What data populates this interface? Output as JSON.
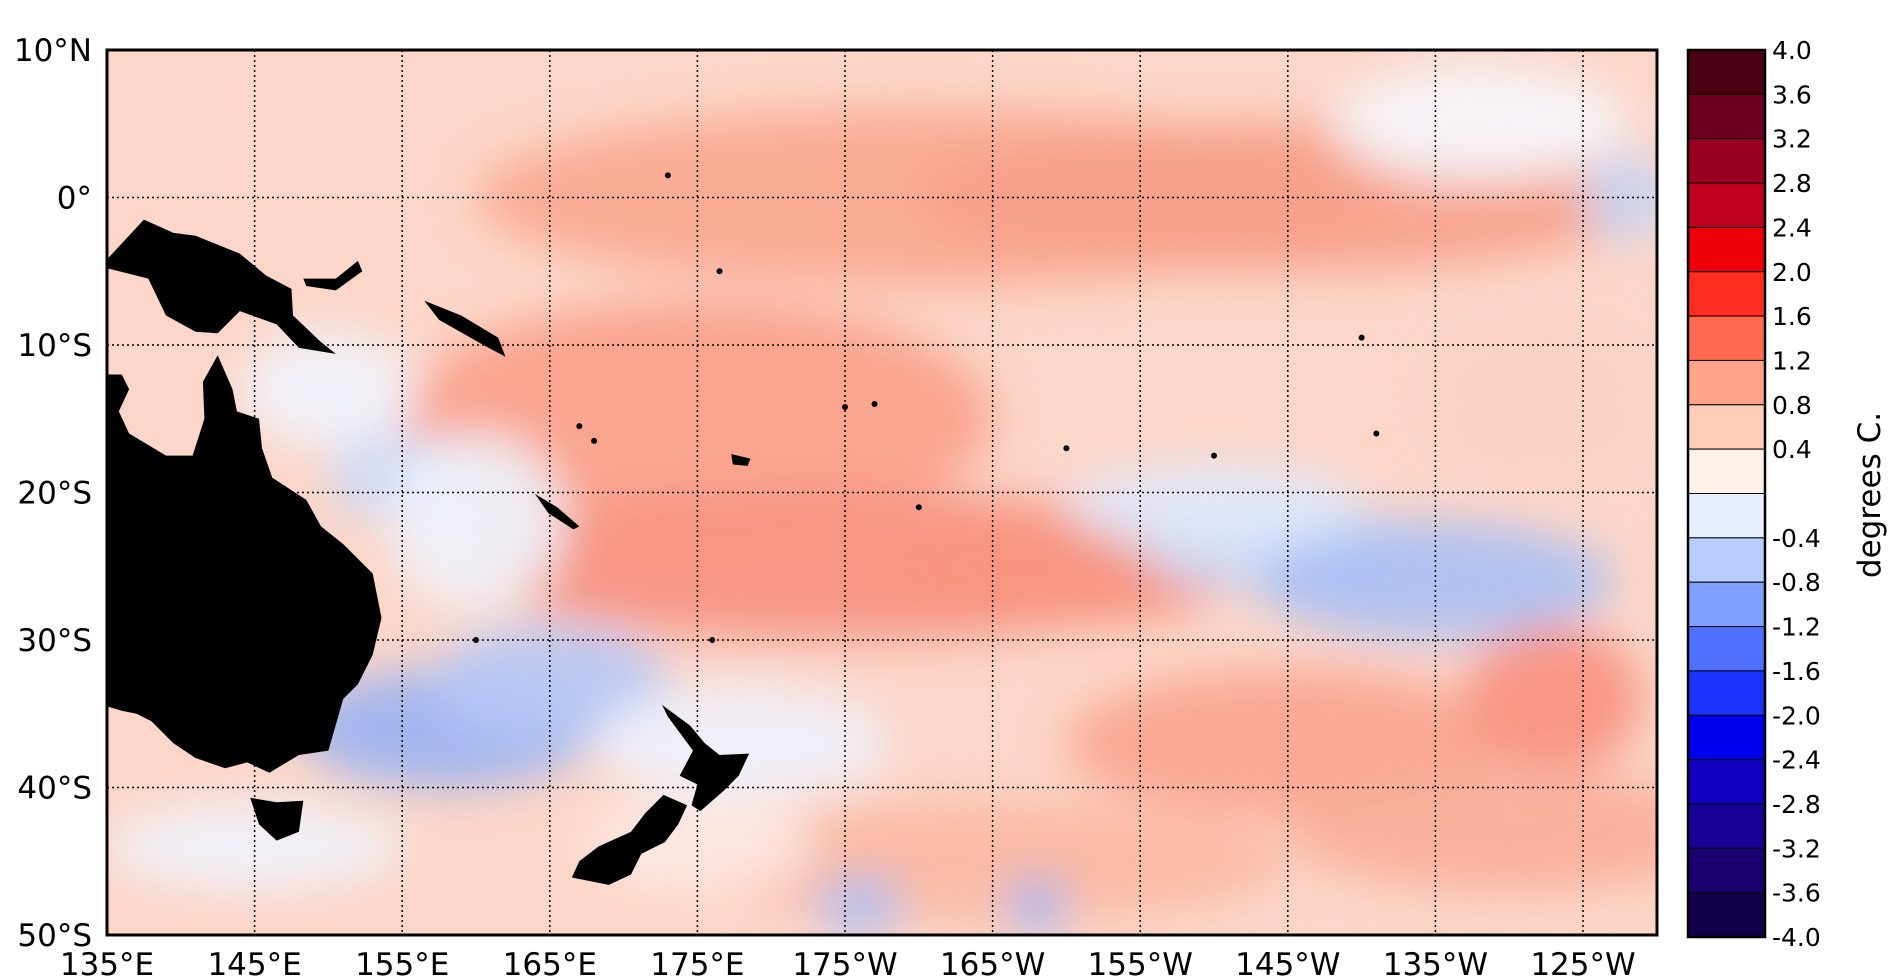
{
  "map": {
    "lat_labels": [
      "10°N",
      "0°",
      "10°S",
      "20°S",
      "30°S",
      "40°S",
      "50°S"
    ],
    "lon_labels": [
      "135°E",
      "145°E",
      "155°E",
      "165°E",
      "175°E",
      "175°W",
      "165°W",
      "155°W",
      "145°W",
      "135°W",
      "125°W"
    ],
    "lon_range": [
      135,
      240
    ],
    "lat_range": [
      -50,
      10
    ]
  },
  "colorbar": {
    "label": "degrees C.",
    "tick_labels": [
      "4.0",
      "3.6",
      "3.2",
      "2.8",
      "2.4",
      "2.0",
      "1.6",
      "1.2",
      "0.8",
      "0.4",
      "-0.4",
      "-0.8",
      "-1.2",
      "-1.6",
      "-2.0",
      "-2.4",
      "-2.8",
      "-3.2",
      "-3.6",
      "-4.0"
    ],
    "colors": [
      "#4a0012",
      "#6e0020",
      "#990022",
      "#c0001f",
      "#ee0008",
      "#ff2e20",
      "#ff6a50",
      "#ffa488",
      "#ffcdb8",
      "#fff0e8",
      "#e8f0ff",
      "#b7ccff",
      "#7fa0ff",
      "#4e70ff",
      "#1c34ff",
      "#0000ee",
      "#1000c0",
      "#180096",
      "#1a0070",
      "#12004a"
    ],
    "range": [
      -4.0,
      4.0
    ]
  }
}
